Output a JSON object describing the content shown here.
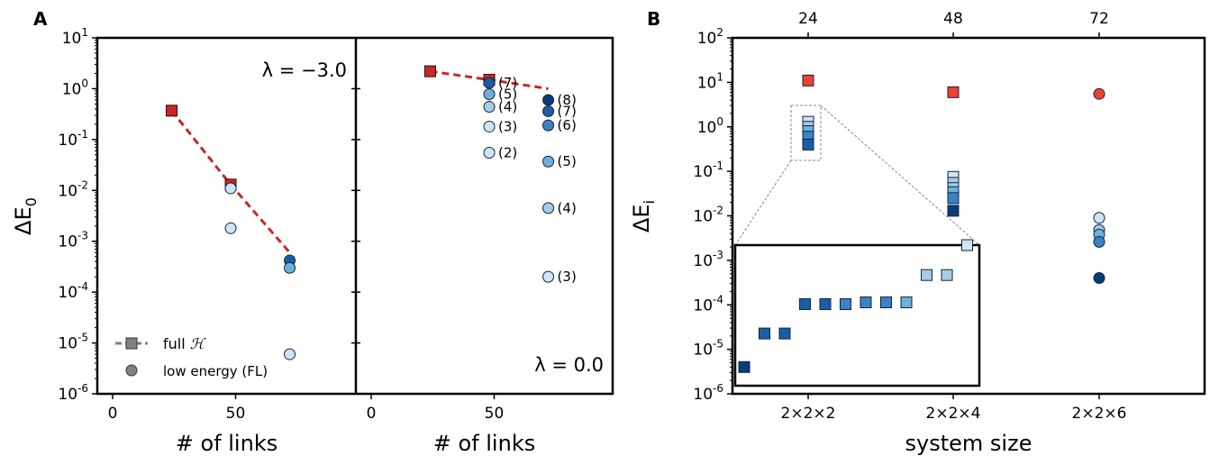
{
  "panel_a_label": "A",
  "panel_b_label": "B",
  "colors": {
    "full_marker": "#c62828",
    "full_line": "#c62828",
    "blue_1": "#d2e3f3",
    "blue_2": "#a9cce3",
    "blue_3": "#6fb0da",
    "blue_4": "#3b82c4",
    "blue_5": "#1b5ea8",
    "blue_6": "#0b3b7a",
    "legend_gray": "#808080",
    "b_red": "#ef4131"
  },
  "chart_data": [
    {
      "type": "scatter",
      "panel": "A-left",
      "xlabel": "# of links",
      "ylabel": "ΔE₀",
      "ylabel_sub": "0",
      "xlim": [
        -8,
        97
      ],
      "ylim_log10": [
        -6,
        1
      ],
      "yscale": "log",
      "annotation": "λ = −3.0",
      "x_ticks": [
        0,
        50
      ],
      "y_ticks": [
        "10^1",
        "10^0",
        "10^-1",
        "10^-2",
        "10^-3",
        "10^-4",
        "10^-5",
        "10^-6"
      ],
      "series": [
        {
          "name": "full ℋ",
          "kind": "square-dashed",
          "x": [
            24,
            48,
            72
          ],
          "y": [
            0.37,
            0.013,
            0.0006
          ]
        },
        {
          "name": "low energy (FL)",
          "kind": "circle",
          "points": [
            {
              "x": 48,
              "y": 0.011,
              "c": "blue_1"
            },
            {
              "x": 48,
              "y": 0.0018,
              "c": "blue_1"
            },
            {
              "x": 72,
              "y": 0.00042,
              "c": "blue_5"
            },
            {
              "x": 72,
              "y": 0.0003,
              "c": "blue_3"
            },
            {
              "x": 72,
              "y": 6e-06,
              "c": "blue_1"
            }
          ]
        }
      ],
      "legend": [
        {
          "label": "full",
          "math": "ℋ"
        },
        {
          "label": "low energy (FL)"
        }
      ]
    },
    {
      "type": "scatter",
      "panel": "A-right",
      "xlabel": "# of links",
      "xlim": [
        -8,
        97
      ],
      "ylim_log10": [
        -6,
        1
      ],
      "yscale": "log",
      "annotation": "λ = 0.0",
      "x_ticks": [
        0,
        50
      ],
      "series": [
        {
          "name": "full ℋ",
          "kind": "square-dashed",
          "x": [
            24,
            48,
            72
          ],
          "y": [
            2.2,
            1.5,
            1.0
          ]
        },
        {
          "name": "low energy (FL)",
          "kind": "circle",
          "points": [
            {
              "x": 48,
              "y": 1.3,
              "c": "blue_5",
              "label": "(7)"
            },
            {
              "x": 48,
              "y": 0.78,
              "c": "blue_3",
              "label": "(5)"
            },
            {
              "x": 48,
              "y": 0.44,
              "c": "blue_2",
              "label": "(4)"
            },
            {
              "x": 48,
              "y": 0.18,
              "c": "blue_1",
              "label": "(3)"
            },
            {
              "x": 48,
              "y": 0.055,
              "c": "blue_1",
              "label": "(2)"
            },
            {
              "x": 72,
              "y": 0.6,
              "c": "blue_6",
              "label": "(8)"
            },
            {
              "x": 72,
              "y": 0.36,
              "c": "blue_5",
              "label": "(7)"
            },
            {
              "x": 72,
              "y": 0.19,
              "c": "blue_4",
              "label": "(6)"
            },
            {
              "x": 72,
              "y": 0.037,
              "c": "blue_3",
              "label": "(5)"
            },
            {
              "x": 72,
              "y": 0.0045,
              "c": "blue_2",
              "label": "(4)"
            },
            {
              "x": 72,
              "y": 0.0002,
              "c": "blue_1",
              "label": "(3)"
            }
          ]
        }
      ]
    },
    {
      "type": "scatter",
      "panel": "B",
      "xlabel": "system size",
      "ylabel": "ΔE_i",
      "ylabel_sub": "i",
      "yscale": "log",
      "ylim_log10": [
        -6,
        2
      ],
      "categories": [
        "2×2×2",
        "2×2×4",
        "2×2×6"
      ],
      "top_ticks": [
        "24",
        "48",
        "72"
      ],
      "y_ticks": [
        "10^2",
        "10^1",
        "10^0",
        "10^-1",
        "10^-2",
        "10^-3",
        "10^-4",
        "10^-5",
        "10^-6"
      ],
      "points": [
        {
          "cat": 0,
          "y": 11,
          "shape": "square",
          "c": "b_red"
        },
        {
          "cat": 0,
          "y": 1.3,
          "shape": "square",
          "c": "blue_1"
        },
        {
          "cat": 0,
          "y": 1.0,
          "shape": "square",
          "c": "blue_2"
        },
        {
          "cat": 0,
          "y": 0.8,
          "shape": "square",
          "c": "blue_3"
        },
        {
          "cat": 0,
          "y": 0.6,
          "shape": "square",
          "c": "blue_4"
        },
        {
          "cat": 0,
          "y": 0.4,
          "shape": "square",
          "c": "blue_5"
        },
        {
          "cat": 1,
          "y": 6,
          "shape": "square",
          "c": "b_red"
        },
        {
          "cat": 1,
          "y": 0.075,
          "shape": "square",
          "c": "blue_1"
        },
        {
          "cat": 1,
          "y": 0.055,
          "shape": "square",
          "c": "blue_2"
        },
        {
          "cat": 1,
          "y": 0.042,
          "shape": "square",
          "c": "blue_2"
        },
        {
          "cat": 1,
          "y": 0.034,
          "shape": "square",
          "c": "blue_3"
        },
        {
          "cat": 1,
          "y": 0.025,
          "shape": "square",
          "c": "blue_4"
        },
        {
          "cat": 1,
          "y": 0.013,
          "shape": "square",
          "c": "blue_6"
        },
        {
          "cat": 2,
          "y": 5.5,
          "shape": "circle",
          "c": "b_red"
        },
        {
          "cat": 2,
          "y": 0.009,
          "shape": "circle",
          "c": "blue_1"
        },
        {
          "cat": 2,
          "y": 0.0048,
          "shape": "circle",
          "c": "blue_2"
        },
        {
          "cat": 2,
          "y": 0.0038,
          "shape": "circle",
          "c": "blue_3"
        },
        {
          "cat": 2,
          "y": 0.0026,
          "shape": "circle",
          "c": "blue_4"
        },
        {
          "cat": 2,
          "y": 0.0004,
          "shape": "circle",
          "c": "blue_6"
        }
      ],
      "inset": {
        "ylim_log10": [
          -6,
          -3
        ],
        "values": [
          2.5e-06,
          1.3e-05,
          1.3e-05,
          5.5e-05,
          5.5e-05,
          5.5e-05,
          6e-05,
          6e-05,
          6e-05,
          0.00023,
          0.00023,
          0.001
        ],
        "colors": [
          "blue_6",
          "blue_5",
          "blue_5",
          "blue_5",
          "blue_5",
          "blue_4",
          "blue_4",
          "blue_4",
          "blue_3",
          "blue_2",
          "blue_2",
          "blue_1"
        ]
      }
    }
  ]
}
